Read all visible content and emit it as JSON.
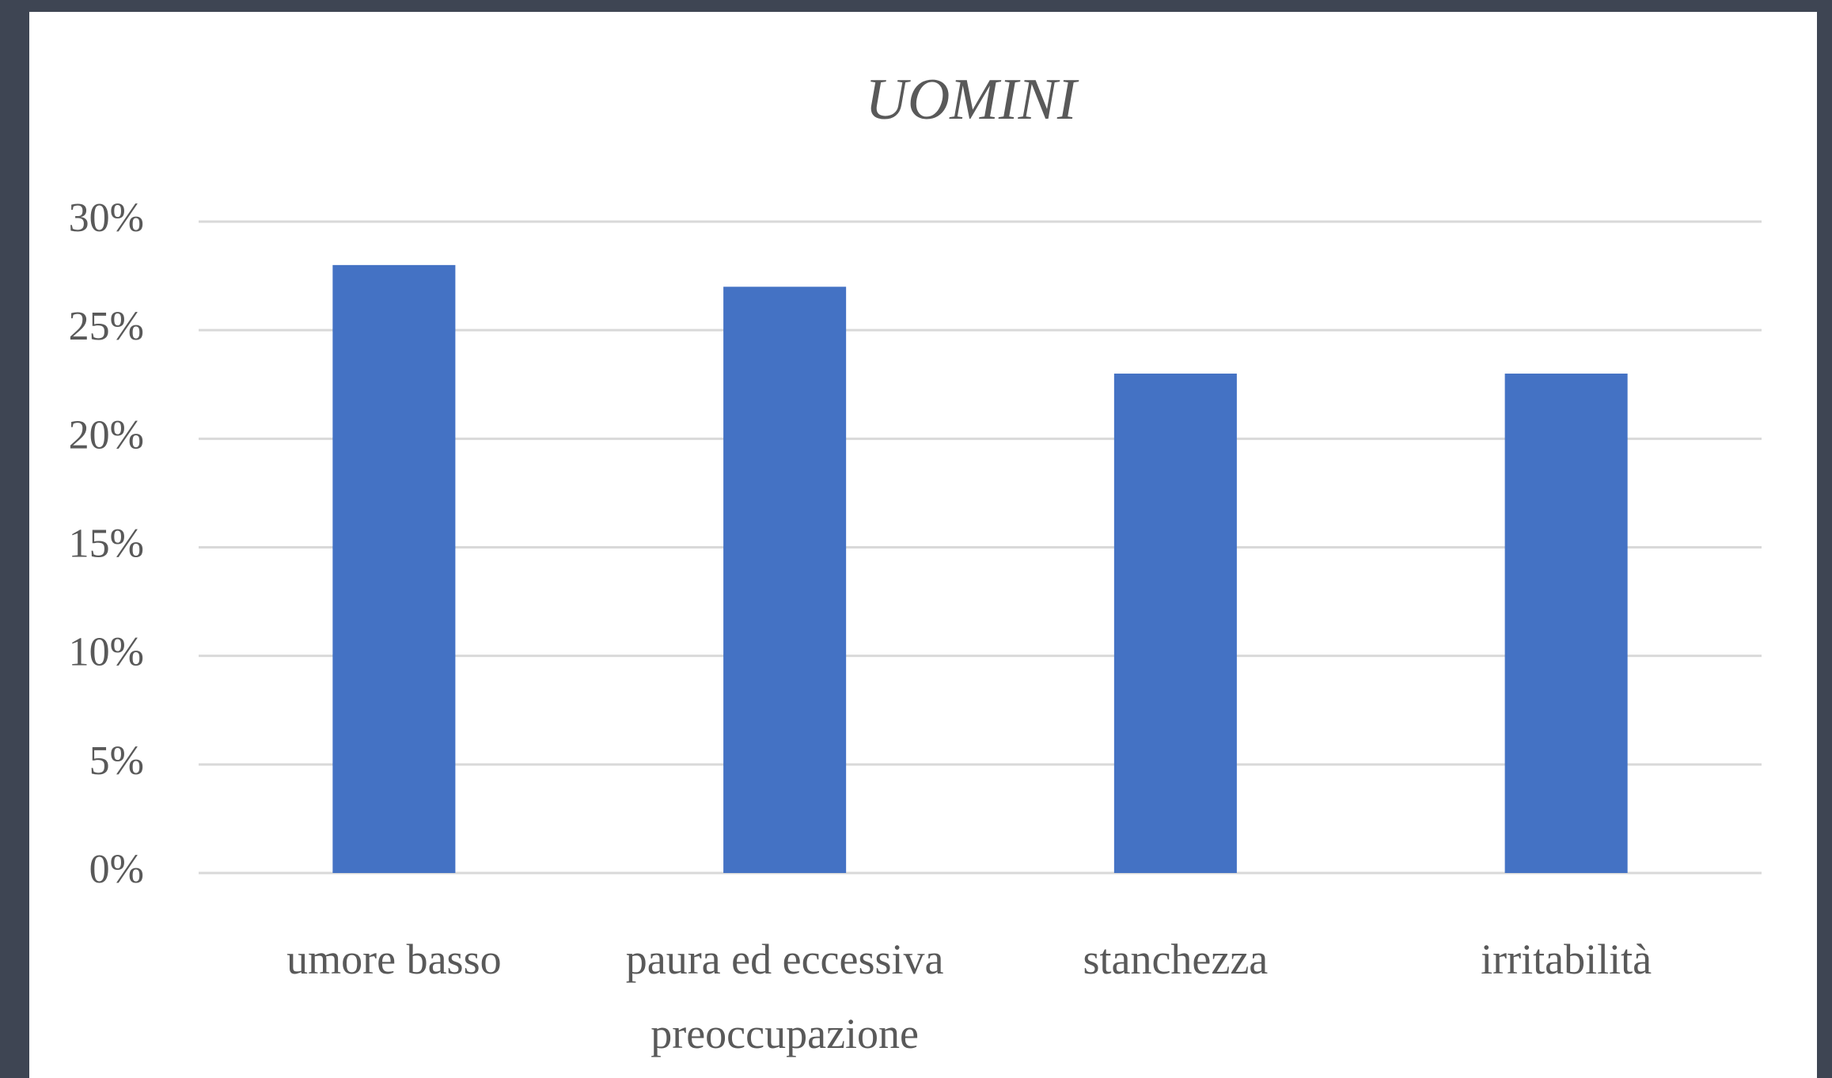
{
  "chart_data": {
    "type": "bar",
    "title": "UOMINI",
    "categories": [
      "umore basso",
      "paura ed eccessiva preoccupazione",
      "stanchezza",
      "irritabilità"
    ],
    "values": [
      28,
      27,
      23,
      23
    ],
    "color": "#4472c4",
    "ylim": [
      0,
      30
    ],
    "yticks": [
      {
        "value": 0,
        "label": "0%"
      },
      {
        "value": 5,
        "label": "5%"
      },
      {
        "value": 10,
        "label": "10%"
      },
      {
        "value": 15,
        "label": "15%"
      },
      {
        "value": 20,
        "label": "20%"
      },
      {
        "value": 25,
        "label": "25%"
      },
      {
        "value": 30,
        "label": "30%"
      }
    ],
    "grid": true
  }
}
